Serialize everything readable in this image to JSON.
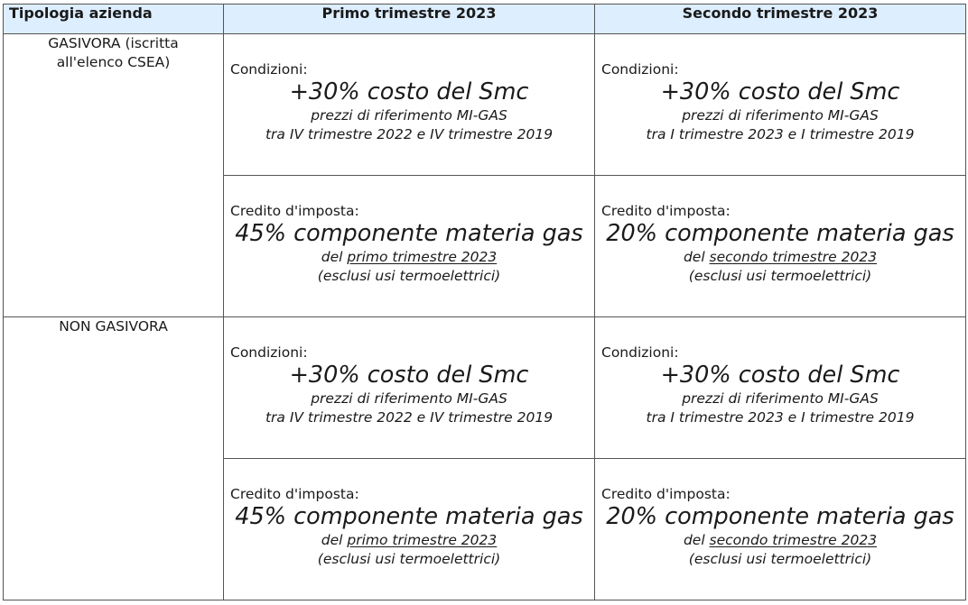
{
  "header": {
    "col_tipologia": "Tipologia azienda",
    "col_q1": "Primo trimestre 2023",
    "col_q2": "Secondo trimestre 2023"
  },
  "rows": [
    {
      "tipologia": "GASIVORA (iscritta all'elenco CSEA)",
      "q1": {
        "condizioni_label": "Condizioni:",
        "condizioni_big": "+30% costo del Smc",
        "condizioni_l1": "prezzi di riferimento MI-GAS",
        "condizioni_l2": "tra IV trimestre 2022 e IV trimestre 2019",
        "credito_label": "Credito d'imposta:",
        "credito_big": "45% componente materia gas",
        "credito_pre": "del ",
        "credito_ul": "primo trimestre 2023",
        "credito_l2": "(esclusi usi termoelettrici)"
      },
      "q2": {
        "condizioni_label": "Condizioni:",
        "condizioni_big": "+30% costo del Smc",
        "condizioni_l1": "prezzi di riferimento MI-GAS",
        "condizioni_l2": "tra I trimestre 2023 e I trimestre 2019",
        "credito_label": "Credito d'imposta:",
        "credito_big": "20% componente materia gas",
        "credito_pre": "del ",
        "credito_ul": "secondo trimestre 2023",
        "credito_l2": "(esclusi usi termoelettrici)"
      }
    },
    {
      "tipologia": "NON GASIVORA",
      "q1": {
        "condizioni_label": "Condizioni:",
        "condizioni_big": "+30% costo del Smc",
        "condizioni_l1": "prezzi di riferimento MI-GAS",
        "condizioni_l2": "tra IV trimestre 2022 e IV trimestre 2019",
        "credito_label": "Credito d'imposta:",
        "credito_big": "45% componente materia gas",
        "credito_pre": "del ",
        "credito_ul": "primo trimestre 2023",
        "credito_l2": "(esclusi usi termoelettrici)"
      },
      "q2": {
        "condizioni_label": "Condizioni:",
        "condizioni_big": "+30% costo del Smc",
        "condizioni_l1": "prezzi di riferimento MI-GAS",
        "condizioni_l2": "tra I trimestre 2023 e I trimestre 2019",
        "credito_label": "Credito d'imposta:",
        "credito_big": "20% componente materia gas",
        "credito_pre": "del ",
        "credito_ul": "secondo trimestre 2023",
        "credito_l2": "(esclusi usi termoelettrici)"
      }
    }
  ],
  "colors": {
    "header_bg": "#ddeeff",
    "border": "#555555"
  }
}
